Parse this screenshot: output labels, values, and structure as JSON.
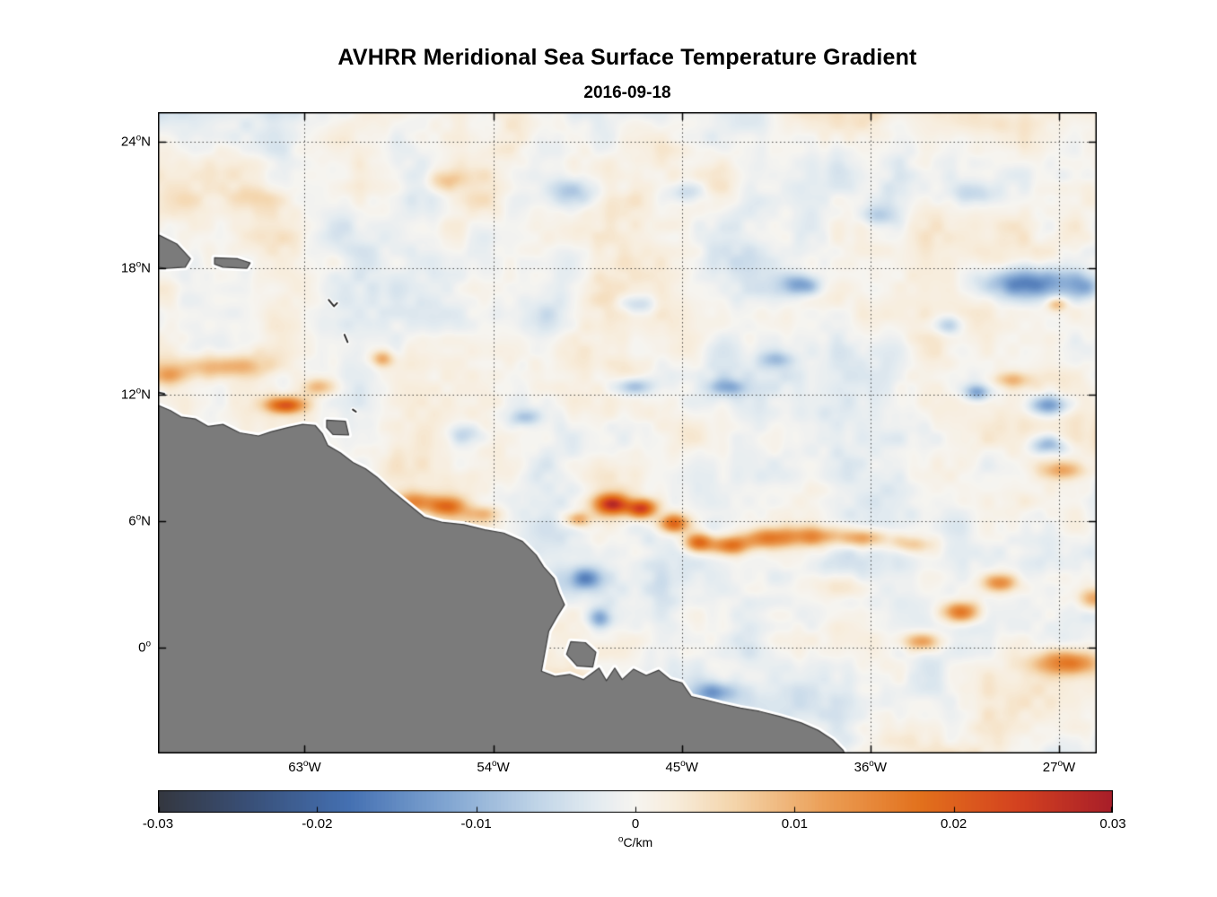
{
  "title": "AVHRR Meridional Sea Surface Temperature Gradient",
  "date": "2016-09-18",
  "degree_symbol": "o",
  "axes": {
    "x": {
      "ticks": [
        {
          "num": "63",
          "hemi": "W",
          "value": -63
        },
        {
          "num": "54",
          "hemi": "W",
          "value": -54
        },
        {
          "num": "45",
          "hemi": "W",
          "value": -45
        },
        {
          "num": "36",
          "hemi": "W",
          "value": -36
        },
        {
          "num": "27",
          "hemi": "W",
          "value": -27
        }
      ]
    },
    "y": {
      "ticks": [
        {
          "num": "24",
          "hemi": "N",
          "value": 24
        },
        {
          "num": "18",
          "hemi": "N",
          "value": 18
        },
        {
          "num": "12",
          "hemi": "N",
          "value": 12
        },
        {
          "num": "6",
          "hemi": "N",
          "value": 6
        },
        {
          "num": "0",
          "hemi": "",
          "value": 0
        }
      ]
    }
  },
  "colorbar": {
    "label_unit": "C/km",
    "min": -0.03,
    "max": 0.03,
    "ticks": [
      {
        "label": "-0.03",
        "value": -0.03
      },
      {
        "label": "-0.02",
        "value": -0.02
      },
      {
        "label": "-0.01",
        "value": -0.01
      },
      {
        "label": "0",
        "value": 0
      },
      {
        "label": "0.01",
        "value": 0.01
      },
      {
        "label": "0.02",
        "value": 0.02
      },
      {
        "label": "0.03",
        "value": 0.03
      }
    ],
    "stops": [
      [
        -0.03,
        "#34373f"
      ],
      [
        -0.024,
        "#39517a"
      ],
      [
        -0.018,
        "#4470b2"
      ],
      [
        -0.012,
        "#7fa4d1"
      ],
      [
        -0.006,
        "#c2d6e8"
      ],
      [
        -0.0025,
        "#e3ebf0"
      ],
      [
        0,
        "#f6f4f0"
      ],
      [
        0.0025,
        "#f7ecdb"
      ],
      [
        0.006,
        "#f4d6ad"
      ],
      [
        0.012,
        "#eb9e55"
      ],
      [
        0.018,
        "#e2701c"
      ],
      [
        0.024,
        "#d4421f"
      ],
      [
        0.03,
        "#a81e29"
      ]
    ]
  },
  "chart_data": {
    "type": "heatmap",
    "title": "AVHRR Meridional Sea Surface Temperature Gradient",
    "date": "2016-09-18",
    "units": "°C/km",
    "lon_range": [
      -70,
      -25.2
    ],
    "lat_range": [
      -5,
      25.4
    ],
    "value_range": [
      -0.03,
      0.03
    ],
    "grid_lons": [
      -63,
      -54,
      -45,
      -36,
      -27
    ],
    "grid_lats": [
      24,
      18,
      12,
      6,
      0
    ],
    "land_color": "#7b7b7b",
    "coast_halo_color": "#ffffff",
    "noise_amplitude": 0.0068,
    "features": [
      [
        -66.8,
        13.35,
        2.2,
        0.55,
        0.011
      ],
      [
        -69.5,
        12.9,
        1.0,
        0.45,
        0.009
      ],
      [
        -63.9,
        11.5,
        0.9,
        0.4,
        0.02
      ],
      [
        -62.3,
        12.4,
        0.7,
        0.45,
        0.009
      ],
      [
        -59.3,
        13.7,
        0.55,
        0.4,
        0.011
      ],
      [
        -65.6,
        21.3,
        1.4,
        0.55,
        0.0065
      ],
      [
        -56.3,
        22.2,
        0.9,
        0.5,
        0.0075
      ],
      [
        -57.8,
        6.9,
        1.0,
        0.5,
        0.014
      ],
      [
        -56.2,
        6.7,
        0.8,
        0.45,
        0.015
      ],
      [
        -54.6,
        6.35,
        1.0,
        0.4,
        0.008
      ],
      [
        -50.0,
        6.1,
        0.6,
        0.4,
        0.013
      ],
      [
        -48.3,
        6.8,
        0.8,
        0.5,
        0.025
      ],
      [
        -46.9,
        6.6,
        0.7,
        0.45,
        0.024
      ],
      [
        -45.4,
        5.9,
        0.7,
        0.45,
        0.02
      ],
      [
        -44.2,
        5.0,
        0.7,
        0.45,
        0.02
      ],
      [
        -42.7,
        4.85,
        0.9,
        0.45,
        0.018
      ],
      [
        -40.9,
        5.2,
        1.1,
        0.5,
        0.016
      ],
      [
        -38.8,
        5.3,
        1.4,
        0.5,
        0.014
      ],
      [
        -36.3,
        5.2,
        1.3,
        0.45,
        0.013
      ],
      [
        -34.0,
        4.9,
        1.0,
        0.45,
        0.009
      ],
      [
        -37.8,
        2.9,
        2.0,
        0.6,
        0.006
      ],
      [
        -31.7,
        1.7,
        0.9,
        0.5,
        0.019
      ],
      [
        -29.8,
        3.1,
        0.8,
        0.45,
        0.015
      ],
      [
        -33.5,
        0.3,
        0.9,
        0.45,
        0.013
      ],
      [
        -26.6,
        -0.7,
        1.5,
        0.6,
        0.017
      ],
      [
        -25.3,
        2.3,
        0.8,
        0.5,
        0.013
      ],
      [
        -26.8,
        8.4,
        1.1,
        0.45,
        0.011
      ],
      [
        -29.2,
        12.7,
        0.9,
        0.4,
        0.009
      ],
      [
        -27.1,
        16.3,
        0.5,
        0.35,
        0.01
      ],
      [
        -28.6,
        17.3,
        2.2,
        0.75,
        -0.018
      ],
      [
        -25.8,
        17.1,
        0.9,
        0.6,
        -0.01
      ],
      [
        -39.3,
        17.2,
        0.9,
        0.5,
        -0.013
      ],
      [
        -35.6,
        20.5,
        0.9,
        0.5,
        -0.007
      ],
      [
        -47.3,
        12.4,
        0.9,
        0.45,
        -0.011
      ],
      [
        -42.9,
        12.35,
        0.9,
        0.4,
        -0.009
      ],
      [
        -30.9,
        12.1,
        0.6,
        0.4,
        -0.012
      ],
      [
        -27.5,
        11.5,
        1.0,
        0.5,
        -0.015
      ],
      [
        -27.5,
        9.6,
        0.9,
        0.45,
        -0.011
      ],
      [
        -49.6,
        3.3,
        0.7,
        0.5,
        -0.013
      ],
      [
        -48.9,
        1.4,
        0.6,
        0.5,
        -0.011
      ],
      [
        -43.5,
        -2.1,
        1.1,
        0.5,
        -0.011
      ],
      [
        -55.3,
        10.1,
        0.9,
        0.5,
        -0.006
      ],
      [
        -52.5,
        10.9,
        0.7,
        0.4,
        -0.007
      ],
      [
        -50.1,
        21.7,
        1.3,
        0.6,
        -0.006
      ],
      [
        -44.8,
        21.6,
        1.0,
        0.5,
        -0.006
      ],
      [
        -47.1,
        16.3,
        0.9,
        0.45,
        -0.007
      ],
      [
        -40.5,
        13.7,
        0.8,
        0.4,
        -0.007
      ],
      [
        -32.3,
        15.3,
        0.7,
        0.45,
        -0.008
      ],
      [
        -31.0,
        21.5,
        1.2,
        0.6,
        -0.007
      ]
    ],
    "land": {
      "mainland": [
        [
          -70.8,
          11.65
        ],
        [
          -70.0,
          11.5
        ],
        [
          -69.4,
          11.25
        ],
        [
          -68.9,
          10.95
        ],
        [
          -68.2,
          10.85
        ],
        [
          -67.6,
          10.5
        ],
        [
          -66.9,
          10.6
        ],
        [
          -66.1,
          10.2
        ],
        [
          -65.2,
          10.05
        ],
        [
          -64.6,
          10.25
        ],
        [
          -63.8,
          10.45
        ],
        [
          -63.1,
          10.6
        ],
        [
          -62.5,
          10.55
        ],
        [
          -62.15,
          10.15
        ],
        [
          -61.9,
          9.6
        ],
        [
          -61.3,
          9.25
        ],
        [
          -60.7,
          8.8
        ],
        [
          -60.1,
          8.5
        ],
        [
          -59.55,
          8.1
        ],
        [
          -58.9,
          7.5
        ],
        [
          -58.1,
          6.85
        ],
        [
          -57.3,
          6.2
        ],
        [
          -56.4,
          5.95
        ],
        [
          -55.4,
          5.85
        ],
        [
          -54.4,
          5.6
        ],
        [
          -53.5,
          5.45
        ],
        [
          -52.6,
          5.05
        ],
        [
          -51.95,
          4.4
        ],
        [
          -51.6,
          3.85
        ],
        [
          -51.1,
          3.3
        ],
        [
          -50.85,
          2.6
        ],
        [
          -50.6,
          2.05
        ],
        [
          -50.95,
          1.5
        ],
        [
          -51.35,
          0.8
        ],
        [
          -51.7,
          -1.1
        ],
        [
          -51.05,
          -1.35
        ],
        [
          -50.35,
          -1.25
        ],
        [
          -49.7,
          -1.5
        ],
        [
          -48.95,
          -0.95
        ],
        [
          -48.6,
          -1.55
        ],
        [
          -48.2,
          -0.95
        ],
        [
          -47.85,
          -1.5
        ],
        [
          -47.3,
          -1.0
        ],
        [
          -46.7,
          -1.3
        ],
        [
          -46.1,
          -1.05
        ],
        [
          -45.55,
          -1.5
        ],
        [
          -45.0,
          -1.65
        ],
        [
          -44.55,
          -2.3
        ],
        [
          -43.9,
          -2.45
        ],
        [
          -43.1,
          -2.65
        ],
        [
          -42.2,
          -2.85
        ],
        [
          -41.3,
          -3.0
        ],
        [
          -40.3,
          -3.25
        ],
        [
          -39.3,
          -3.55
        ],
        [
          -38.5,
          -3.9
        ],
        [
          -37.8,
          -4.35
        ],
        [
          -37.3,
          -4.85
        ],
        [
          -36.9,
          -5.7
        ],
        [
          -70.8,
          -5.7
        ]
      ],
      "marajo_island": [
        [
          -50.3,
          0.3
        ],
        [
          -49.6,
          0.25
        ],
        [
          -49.1,
          -0.2
        ],
        [
          -49.25,
          -0.9
        ],
        [
          -50.0,
          -0.85
        ],
        [
          -50.5,
          -0.3
        ]
      ],
      "hispaniola": [
        [
          -70.9,
          19.9
        ],
        [
          -69.9,
          19.55
        ],
        [
          -69.1,
          19.15
        ],
        [
          -68.45,
          18.45
        ],
        [
          -68.7,
          18.05
        ],
        [
          -69.6,
          18.0
        ],
        [
          -70.9,
          18.15
        ]
      ],
      "puerto_rico": [
        [
          -67.3,
          18.5
        ],
        [
          -66.2,
          18.45
        ],
        [
          -65.6,
          18.25
        ],
        [
          -65.75,
          18.0
        ],
        [
          -66.9,
          18.05
        ],
        [
          -67.3,
          18.2
        ]
      ],
      "trinidad": [
        [
          -61.95,
          10.8
        ],
        [
          -61.05,
          10.75
        ],
        [
          -60.9,
          10.1
        ],
        [
          -61.65,
          10.12
        ],
        [
          -61.95,
          10.45
        ]
      ],
      "islets": [
        [
          [
            -61.85,
            16.5
          ],
          [
            -61.6,
            16.2
          ],
          [
            -61.45,
            16.35
          ]
        ],
        [
          [
            -61.1,
            14.85
          ],
          [
            -60.95,
            14.5
          ]
        ],
        [
          [
            -70.4,
            12.2
          ],
          [
            -69.7,
            12.05
          ]
        ],
        [
          [
            -60.7,
            11.3
          ],
          [
            -60.55,
            11.2
          ]
        ]
      ]
    }
  }
}
